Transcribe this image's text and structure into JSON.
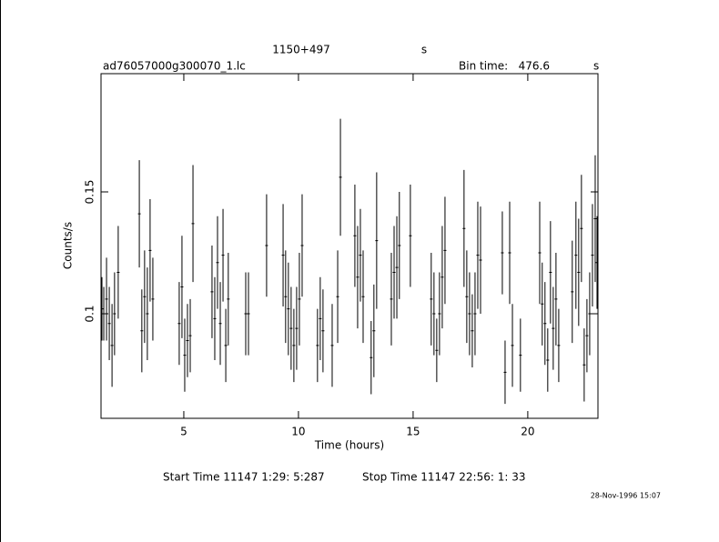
{
  "chart_data": {
    "type": "errorbar",
    "title": "1150+497",
    "title_unit": "s",
    "file_name": "ad76057000g300070_1.lc",
    "bin_time_label": "Bin time:",
    "bin_time": "476.6",
    "bin_time_unit": "s",
    "xlabel": "Time (hours)",
    "ylabel": "Counts/s",
    "start_time": "Start Time 11147  1:29: 5:287",
    "stop_time": "Stop Time 11147 22:56: 1: 33",
    "timestamp": "28-Nov-1996 15:07",
    "color": "#000000",
    "xlim": [
      1.39,
      23.06
    ],
    "ylim": [
      0.0571,
      0.1985
    ],
    "xticks": [
      5,
      10,
      15,
      20
    ],
    "yticks": [
      0.1,
      0.15
    ],
    "x": [
      1.43,
      1.51,
      1.63,
      1.75,
      1.87,
      1.98,
      2.14,
      3.06,
      3.17,
      3.29,
      3.41,
      3.53,
      3.65,
      4.8,
      4.92,
      5.04,
      5.16,
      5.28,
      5.4,
      6.23,
      6.35,
      6.47,
      6.59,
      6.71,
      6.83,
      6.94,
      7.7,
      7.82,
      8.61,
      9.33,
      9.44,
      9.56,
      9.68,
      9.8,
      9.92,
      10.04,
      10.16,
      10.83,
      10.95,
      11.07,
      11.47,
      11.71,
      11.83,
      12.46,
      12.58,
      12.7,
      12.82,
      13.17,
      13.29,
      13.41,
      14.05,
      14.17,
      14.29,
      14.4,
      14.88,
      15.79,
      15.91,
      16.03,
      16.15,
      16.27,
      16.39,
      17.22,
      17.34,
      17.46,
      17.58,
      17.7,
      17.82,
      17.94,
      18.89,
      19.01,
      19.21,
      19.33,
      19.68,
      20.52,
      20.63,
      20.75,
      20.87,
      20.99,
      21.11,
      21.23,
      21.35,
      21.94,
      22.1,
      22.22,
      22.34,
      22.46,
      22.58,
      22.7,
      22.82,
      22.94,
      23.02
    ],
    "values": [
      0.102,
      0.1,
      0.106,
      0.096,
      0.087,
      0.1,
      0.117,
      0.141,
      0.093,
      0.107,
      0.1,
      0.126,
      0.106,
      0.096,
      0.111,
      0.083,
      0.089,
      0.091,
      0.137,
      0.109,
      0.098,
      0.121,
      0.096,
      0.124,
      0.087,
      0.106,
      0.1,
      0.1,
      0.128,
      0.124,
      0.107,
      0.102,
      0.094,
      0.087,
      0.094,
      0.106,
      0.128,
      0.087,
      0.098,
      0.093,
      0.087,
      0.107,
      0.156,
      0.132,
      0.115,
      0.124,
      0.107,
      0.082,
      0.093,
      0.13,
      0.106,
      0.117,
      0.119,
      0.128,
      0.132,
      0.106,
      0.1,
      0.085,
      0.1,
      0.115,
      0.126,
      0.135,
      0.107,
      0.1,
      0.093,
      0.1,
      0.124,
      0.122,
      0.125,
      0.076,
      0.125,
      0.087,
      0.083,
      0.125,
      0.104,
      0.096,
      0.081,
      0.117,
      0.094,
      0.106,
      0.087,
      0.109,
      0.124,
      0.117,
      0.135,
      0.079,
      0.091,
      0.1,
      0.124,
      0.139,
      0.121
    ],
    "yerr": [
      0.013,
      0.011,
      0.017,
      0.015,
      0.017,
      0.017,
      0.019,
      0.022,
      0.017,
      0.019,
      0.019,
      0.021,
      0.017,
      0.017,
      0.021,
      0.015,
      0.015,
      0.015,
      0.024,
      0.019,
      0.017,
      0.019,
      0.017,
      0.019,
      0.015,
      0.019,
      0.017,
      0.017,
      0.021,
      0.021,
      0.019,
      0.019,
      0.017,
      0.015,
      0.017,
      0.019,
      0.021,
      0.015,
      0.017,
      0.017,
      0.017,
      0.019,
      0.024,
      0.021,
      0.021,
      0.019,
      0.019,
      0.015,
      0.019,
      0.028,
      0.019,
      0.019,
      0.021,
      0.022,
      0.021,
      0.019,
      0.017,
      0.013,
      0.017,
      0.021,
      0.022,
      0.024,
      0.019,
      0.017,
      0.015,
      0.017,
      0.022,
      0.022,
      0.017,
      0.013,
      0.021,
      0.017,
      0.015,
      0.021,
      0.017,
      0.017,
      0.013,
      0.021,
      0.017,
      0.019,
      0.015,
      0.021,
      0.022,
      0.022,
      0.022,
      0.015,
      0.015,
      0.017,
      0.021,
      0.026,
      0.019
    ]
  }
}
